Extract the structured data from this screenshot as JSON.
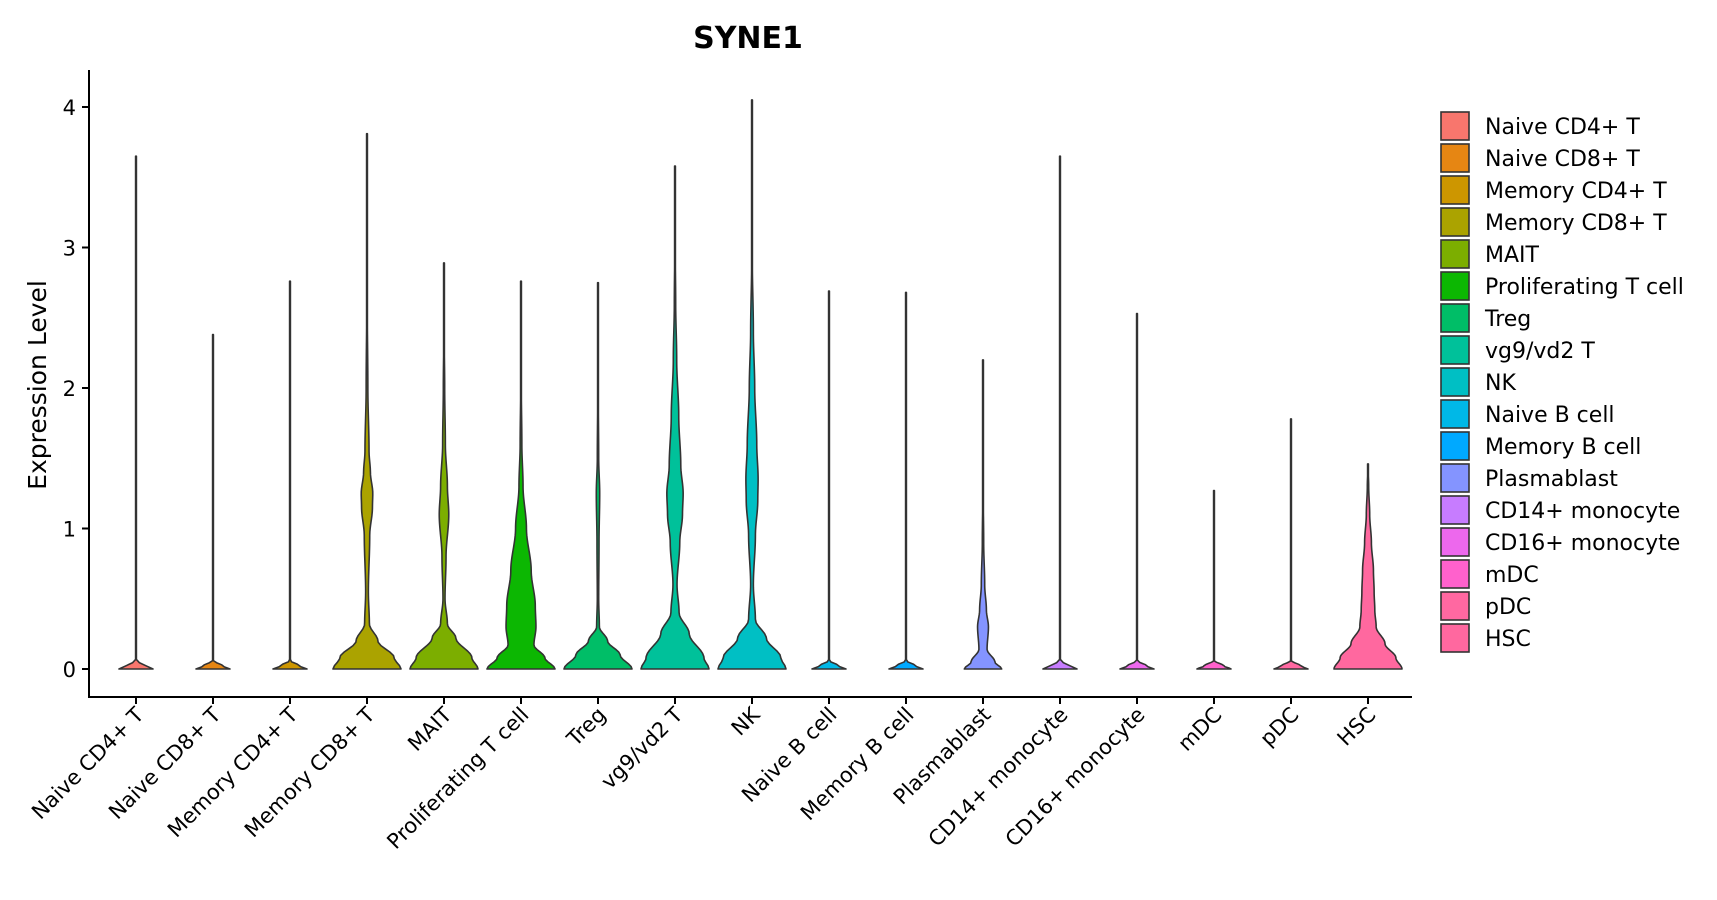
{
  "chart_data": {
    "type": "violin",
    "title": "SYNE1",
    "xlabel": "",
    "ylabel": "Expression Level",
    "ylim": [
      -0.2,
      4.25
    ],
    "yticks": [
      0,
      1,
      2,
      3,
      4
    ],
    "grid": false,
    "legend_position": "right",
    "categories": [
      "Naive CD4+ T",
      "Naive CD8+ T",
      "Memory CD4+ T",
      "Memory CD8+ T",
      "MAIT",
      "Proliferating T cell",
      "Treg",
      "vg9/vd2 T",
      "NK",
      "Naive B cell",
      "Memory B cell",
      "Plasmablast",
      "CD14+ monocyte",
      "CD16+ monocyte",
      "mDC",
      "pDC",
      "HSC"
    ],
    "series": [
      {
        "name": "Naive CD4+ T",
        "color": "#F8766D",
        "max": 3.65,
        "profile": [
          [
            0,
            0.5
          ],
          [
            0.02,
            0.3
          ],
          [
            0.06,
            0.01
          ],
          [
            3.65,
            0.0
          ]
        ]
      },
      {
        "name": "Naive CD8+ T",
        "color": "#E68613",
        "max": 2.38,
        "profile": [
          [
            0,
            0.5
          ],
          [
            0.02,
            0.3
          ],
          [
            0.06,
            0.01
          ],
          [
            2.38,
            0.0
          ]
        ]
      },
      {
        "name": "Memory CD4+ T",
        "color": "#CD9600",
        "max": 2.76,
        "profile": [
          [
            0,
            0.5
          ],
          [
            0.02,
            0.3
          ],
          [
            0.06,
            0.01
          ],
          [
            2.76,
            0.0
          ]
        ]
      },
      {
        "name": "Memory CD8+ T",
        "color": "#ABA300",
        "max": 3.81,
        "profile": [
          [
            0,
            1.0
          ],
          [
            0.08,
            0.8
          ],
          [
            0.2,
            0.32
          ],
          [
            0.32,
            0.07
          ],
          [
            0.55,
            0.04
          ],
          [
            0.95,
            0.08
          ],
          [
            1.15,
            0.16
          ],
          [
            1.25,
            0.17
          ],
          [
            1.4,
            0.1
          ],
          [
            1.55,
            0.06
          ],
          [
            2.0,
            0.025
          ],
          [
            2.6,
            0.008
          ],
          [
            3.81,
            0.0
          ]
        ]
      },
      {
        "name": "MAIT",
        "color": "#7CAE00",
        "max": 2.89,
        "profile": [
          [
            0,
            1.0
          ],
          [
            0.08,
            0.82
          ],
          [
            0.22,
            0.35
          ],
          [
            0.32,
            0.1
          ],
          [
            0.5,
            0.03
          ],
          [
            0.8,
            0.06
          ],
          [
            1.1,
            0.14
          ],
          [
            1.3,
            0.1
          ],
          [
            1.6,
            0.04
          ],
          [
            2.0,
            0.02
          ],
          [
            2.4,
            0.006
          ],
          [
            2.89,
            0.0
          ]
        ]
      },
      {
        "name": "Proliferating T cell",
        "color": "#0CB702",
        "max": 2.76,
        "profile": [
          [
            0,
            1.0
          ],
          [
            0.08,
            0.7
          ],
          [
            0.17,
            0.38
          ],
          [
            0.3,
            0.44
          ],
          [
            0.45,
            0.42
          ],
          [
            0.7,
            0.3
          ],
          [
            1.0,
            0.16
          ],
          [
            1.3,
            0.06
          ],
          [
            1.6,
            0.025
          ],
          [
            2.0,
            0.01
          ],
          [
            2.76,
            0.0
          ]
        ]
      },
      {
        "name": "Treg",
        "color": "#00BE67",
        "max": 2.75,
        "profile": [
          [
            0,
            1.0
          ],
          [
            0.1,
            0.65
          ],
          [
            0.2,
            0.28
          ],
          [
            0.3,
            0.04
          ],
          [
            0.5,
            0.02
          ],
          [
            0.9,
            0.03
          ],
          [
            1.25,
            0.05
          ],
          [
            1.5,
            0.02
          ],
          [
            2.0,
            0.008
          ],
          [
            2.75,
            0.0
          ]
        ]
      },
      {
        "name": "vg9/vd2 T",
        "color": "#00C19A",
        "max": 3.58,
        "profile": [
          [
            0,
            1.0
          ],
          [
            0.08,
            0.85
          ],
          [
            0.25,
            0.42
          ],
          [
            0.4,
            0.12
          ],
          [
            0.6,
            0.06
          ],
          [
            0.9,
            0.14
          ],
          [
            1.1,
            0.22
          ],
          [
            1.25,
            0.24
          ],
          [
            1.45,
            0.17
          ],
          [
            1.8,
            0.11
          ],
          [
            2.2,
            0.05
          ],
          [
            2.6,
            0.02
          ],
          [
            3.0,
            0.008
          ],
          [
            3.58,
            0.0
          ]
        ]
      },
      {
        "name": "NK",
        "color": "#00BFC4",
        "max": 4.05,
        "profile": [
          [
            0,
            1.0
          ],
          [
            0.08,
            0.85
          ],
          [
            0.22,
            0.42
          ],
          [
            0.35,
            0.1
          ],
          [
            0.6,
            0.04
          ],
          [
            0.95,
            0.1
          ],
          [
            1.2,
            0.17
          ],
          [
            1.35,
            0.18
          ],
          [
            1.6,
            0.14
          ],
          [
            2.0,
            0.08
          ],
          [
            2.4,
            0.04
          ],
          [
            2.9,
            0.01
          ],
          [
            3.3,
            0.004
          ],
          [
            4.05,
            0.0
          ]
        ]
      },
      {
        "name": "Naive B cell",
        "color": "#00B8E7",
        "max": 2.69,
        "profile": [
          [
            0,
            0.5
          ],
          [
            0.02,
            0.3
          ],
          [
            0.06,
            0.01
          ],
          [
            2.69,
            0.0
          ]
        ]
      },
      {
        "name": "Memory B cell",
        "color": "#00A9FF",
        "max": 2.68,
        "profile": [
          [
            0,
            0.5
          ],
          [
            0.02,
            0.3
          ],
          [
            0.06,
            0.01
          ],
          [
            2.68,
            0.0
          ]
        ]
      },
      {
        "name": "Plasmablast",
        "color": "#8494FF",
        "max": 2.2,
        "profile": [
          [
            0,
            0.55
          ],
          [
            0.05,
            0.35
          ],
          [
            0.14,
            0.12
          ],
          [
            0.3,
            0.16
          ],
          [
            0.42,
            0.1
          ],
          [
            0.6,
            0.05
          ],
          [
            0.9,
            0.02
          ],
          [
            1.3,
            0.005
          ],
          [
            2.2,
            0.0
          ]
        ]
      },
      {
        "name": "CD14+ monocyte",
        "color": "#C77CFF",
        "max": 3.65,
        "profile": [
          [
            0,
            0.5
          ],
          [
            0.02,
            0.3
          ],
          [
            0.06,
            0.01
          ],
          [
            3.65,
            0.0
          ]
        ]
      },
      {
        "name": "CD16+ monocyte",
        "color": "#ED68ED",
        "max": 2.53,
        "profile": [
          [
            0,
            0.5
          ],
          [
            0.02,
            0.3
          ],
          [
            0.06,
            0.01
          ],
          [
            2.53,
            0.0
          ]
        ]
      },
      {
        "name": "mDC",
        "color": "#FF61CC",
        "max": 1.27,
        "profile": [
          [
            0,
            0.5
          ],
          [
            0.02,
            0.3
          ],
          [
            0.06,
            0.01
          ],
          [
            1.27,
            0.0
          ]
        ]
      },
      {
        "name": "pDC",
        "color": "#FF68A1",
        "max": 1.78,
        "profile": [
          [
            0,
            0.5
          ],
          [
            0.02,
            0.3
          ],
          [
            0.06,
            0.01
          ],
          [
            1.78,
            0.0
          ]
        ]
      },
      {
        "name": "HSC",
        "color": "#FF689F",
        "max": 1.46,
        "profile": [
          [
            0,
            1.0
          ],
          [
            0.08,
            0.82
          ],
          [
            0.18,
            0.5
          ],
          [
            0.3,
            0.24
          ],
          [
            0.42,
            0.2
          ],
          [
            0.55,
            0.18
          ],
          [
            0.7,
            0.16
          ],
          [
            0.9,
            0.1
          ],
          [
            1.1,
            0.05
          ],
          [
            1.3,
            0.02
          ],
          [
            1.46,
            0.0
          ]
        ]
      }
    ],
    "legend": [
      "Naive CD4+ T",
      "Naive CD8+ T",
      "Memory CD4+ T",
      "Memory CD8+ T",
      "MAIT",
      "Proliferating T cell",
      "Treg",
      "vg9/vd2 T",
      "NK",
      "Naive B cell",
      "Memory B cell",
      "Plasmablast",
      "CD14+ monocyte",
      "CD16+ monocyte",
      "mDC",
      "pDC",
      "HSC"
    ]
  }
}
